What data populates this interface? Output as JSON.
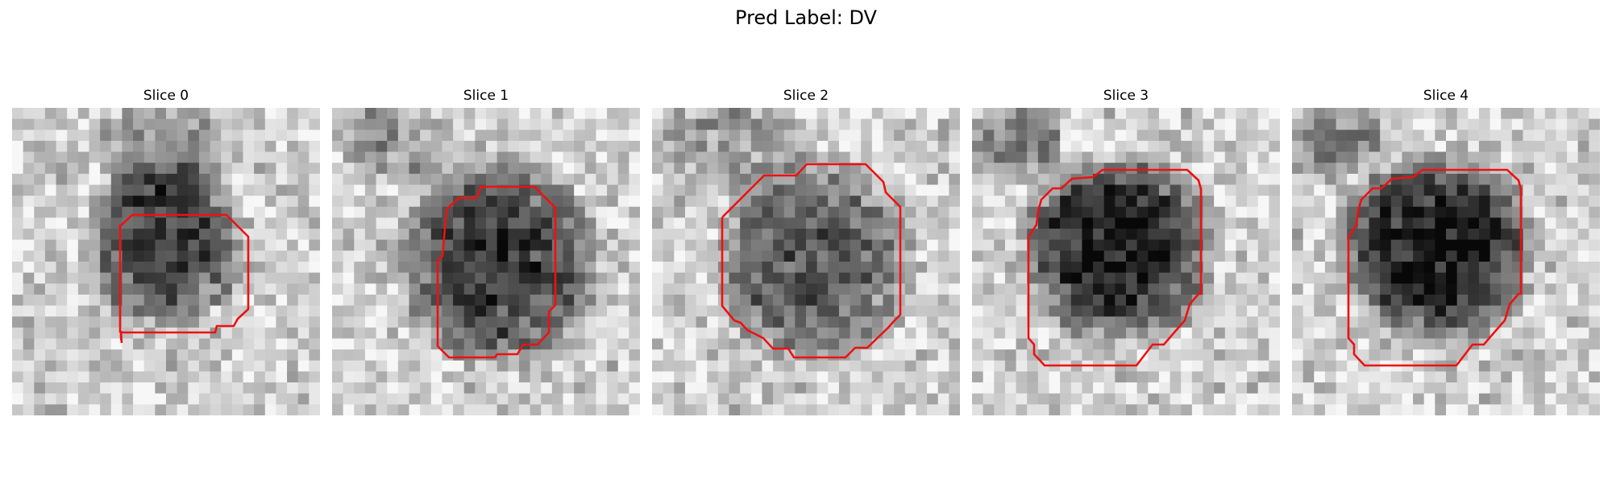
{
  "figure": {
    "title": "Pred Label: DV"
  },
  "colors": {
    "contour": "#ee1111",
    "background": "#ffffff",
    "text": "#000000"
  },
  "panels": [
    {
      "title": "Slice 0"
    },
    {
      "title": "Slice 1"
    },
    {
      "title": "Slice 2"
    },
    {
      "title": "Slice 3"
    },
    {
      "title": "Slice 4"
    }
  ]
}
